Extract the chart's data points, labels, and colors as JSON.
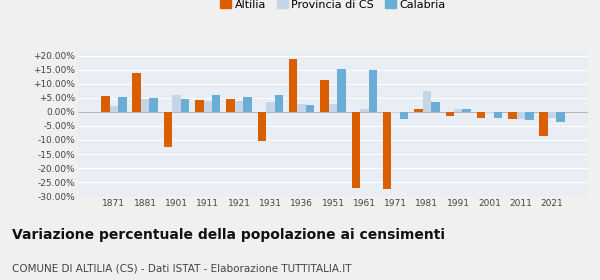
{
  "years": [
    1871,
    1881,
    1901,
    1911,
    1921,
    1931,
    1936,
    1951,
    1961,
    1971,
    1981,
    1991,
    2001,
    2011,
    2021
  ],
  "altilia": [
    5.8,
    13.8,
    -12.5,
    4.2,
    4.5,
    -10.2,
    19.0,
    11.5,
    -27.0,
    -27.5,
    1.0,
    -1.5,
    -2.0,
    -2.5,
    -8.5
  ],
  "provincia_cs": [
    2.0,
    4.5,
    6.0,
    3.8,
    3.8,
    3.5,
    3.0,
    3.0,
    1.0,
    -0.5,
    7.5,
    1.0,
    -0.5,
    -2.5,
    -2.0
  ],
  "calabria": [
    5.2,
    5.0,
    4.5,
    6.0,
    5.5,
    6.0,
    2.5,
    15.5,
    15.0,
    -2.5,
    3.5,
    1.0,
    -2.0,
    -2.8,
    -3.5
  ],
  "altilia_color": "#d95f02",
  "provincia_color": "#c6d4e8",
  "calabria_color": "#6aaed6",
  "title": "Variazione percentuale della popolazione ai censimenti",
  "subtitle": "COMUNE DI ALTILIA (CS) - Dati ISTAT - Elaborazione TUTTITALIA.IT",
  "ylim": [
    -30,
    22
  ],
  "yticks": [
    -30,
    -25,
    -20,
    -15,
    -10,
    -5,
    0,
    5,
    10,
    15,
    20
  ],
  "ytick_labels": [
    "-30.00%",
    "-25.00%",
    "-20.00%",
    "-15.00%",
    "-10.00%",
    "-5.00%",
    "0.00%",
    "+5.00%",
    "+10.00%",
    "+15.00%",
    "+20.00%"
  ],
  "bar_width": 0.27,
  "background_color": "#f0f0f0",
  "plot_bg_color": "#e8eef4",
  "grid_color": "#ffffff",
  "title_fontsize": 10,
  "subtitle_fontsize": 7.5,
  "tick_fontsize": 6.5,
  "legend_fontsize": 8
}
